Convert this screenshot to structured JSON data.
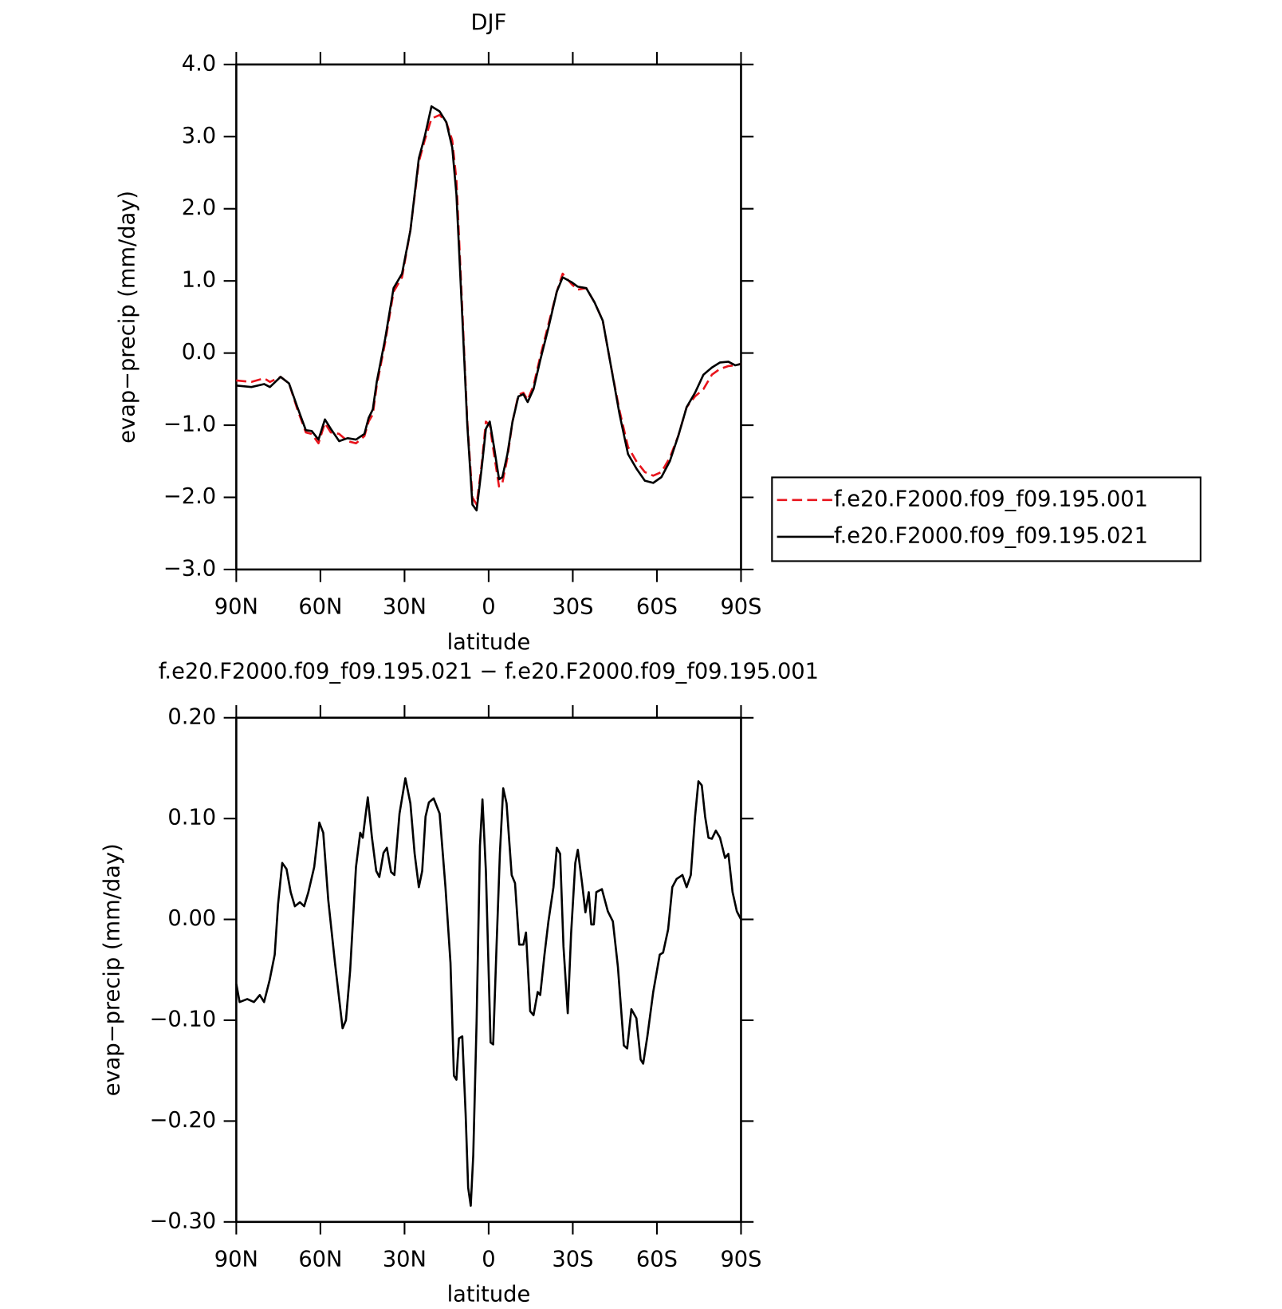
{
  "chart_data": [
    {
      "type": "line",
      "title": "DJF",
      "x_label": "latitude",
      "y_label": "evap−precip (mm/day)",
      "x": [
        90,
        84.6,
        80.1,
        78,
        74.2,
        71.2,
        68.2,
        65.2,
        63.1,
        60.7,
        58.4,
        56.3,
        53.3,
        50.3,
        47.3,
        44.3,
        42.8,
        41.3,
        39.9,
        36.9,
        33.9,
        30.9,
        27.9,
        24.9,
        22.8,
        20.4,
        17.5,
        15.1,
        13,
        11.5,
        9.4,
        7.6,
        5.8,
        4.3,
        2.5,
        1.0,
        -0.4,
        -1.9,
        -3.7,
        -4.9,
        -6.7,
        -8.5,
        -10.6,
        -12.4,
        -13.9,
        -16,
        -18.4,
        -21.3,
        -24.3,
        -26.4,
        -29.7,
        -31.8,
        -34.8,
        -37.8,
        -40.7,
        -43.7,
        -46.7,
        -49.7,
        -52.7,
        -55.7,
        -58.7,
        -61.6,
        -64.6,
        -67.6,
        -70.6,
        -73.6,
        -76.6,
        -79.6,
        -82.5,
        -85.5,
        -87.9,
        -90
      ],
      "series": [
        {
          "name": "f.e20.F2000.f09_f09.195.001",
          "color": "#e8141c",
          "linestyle": "dashed",
          "values": [
            -0.38,
            -0.4,
            -0.35,
            -0.4,
            -0.33,
            -0.42,
            -0.78,
            -1.1,
            -1.12,
            -1.25,
            -0.97,
            -1.1,
            -1.12,
            -1.22,
            -1.25,
            -1.15,
            -0.95,
            -0.85,
            -0.45,
            0.15,
            0.85,
            1.05,
            1.7,
            2.65,
            2.95,
            3.25,
            3.3,
            3.2,
            2.95,
            2.4,
            0.6,
            -0.95,
            -2.0,
            -2.1,
            -1.55,
            -0.95,
            -1.0,
            -1.4,
            -1.85,
            -1.8,
            -1.45,
            -0.95,
            -0.58,
            -0.55,
            -0.65,
            -0.45,
            -0.05,
            0.4,
            0.85,
            1.1,
            0.95,
            0.88,
            0.9,
            0.7,
            0.45,
            -0.2,
            -0.8,
            -1.3,
            -1.5,
            -1.65,
            -1.7,
            -1.65,
            -1.45,
            -1.15,
            -0.75,
            -0.6,
            -0.5,
            -0.3,
            -0.22,
            -0.18,
            -0.17,
            -0.15
          ]
        },
        {
          "name": "f.e20.F2000.f09_f09.195.021",
          "color": "#000000",
          "linestyle": "solid",
          "values": [
            -0.45,
            -0.47,
            -0.43,
            -0.47,
            -0.33,
            -0.42,
            -0.75,
            -1.07,
            -1.08,
            -1.2,
            -0.92,
            -1.05,
            -1.22,
            -1.18,
            -1.2,
            -1.12,
            -0.9,
            -0.78,
            -0.4,
            0.2,
            0.9,
            1.1,
            1.7,
            2.7,
            3.0,
            3.42,
            3.35,
            3.2,
            2.85,
            2.2,
            0.5,
            -1.0,
            -2.1,
            -2.18,
            -1.6,
            -1.05,
            -0.95,
            -1.3,
            -1.75,
            -1.72,
            -1.4,
            -0.95,
            -0.6,
            -0.57,
            -0.68,
            -0.5,
            -0.1,
            0.35,
            0.85,
            1.05,
            0.98,
            0.92,
            0.9,
            0.7,
            0.45,
            -0.2,
            -0.85,
            -1.4,
            -1.6,
            -1.77,
            -1.8,
            -1.72,
            -1.5,
            -1.15,
            -0.75,
            -0.55,
            -0.3,
            -0.2,
            -0.13,
            -0.12,
            -0.17,
            -0.15
          ]
        }
      ],
      "xlim": [
        90,
        -90
      ],
      "xticks": [
        {
          "value": 90,
          "label": "90N"
        },
        {
          "value": 60,
          "label": "60N"
        },
        {
          "value": 30,
          "label": "30N"
        },
        0,
        {
          "value": -30,
          "label": "30S"
        },
        {
          "value": -60,
          "label": "60S"
        },
        {
          "value": -90,
          "label": "90S"
        }
      ],
      "ylim": [
        -3,
        4
      ],
      "yticks": [
        {
          "value": -3,
          "label": "−3.0"
        },
        {
          "value": -2,
          "label": "−2.0"
        },
        {
          "value": -1,
          "label": "−1.0"
        },
        {
          "value": 0,
          "label": "0.0"
        },
        {
          "value": 1,
          "label": "1.0"
        },
        {
          "value": 2,
          "label": "2.0"
        },
        {
          "value": 3,
          "label": "3.0"
        },
        {
          "value": 4,
          "label": "4.0"
        }
      ],
      "grid": false,
      "legend": "right"
    },
    {
      "type": "line",
      "title": "f.e20.F2000.f09_f09.195.021 − f.e20.F2000.f09_f09.195.001",
      "x_label": "latitude",
      "y_label": "evap−precip (mm/day)",
      "color": "#000000",
      "x": [
        90,
        88.8,
        86.1,
        83.7,
        81.6,
        80.1,
        78.1,
        76.3,
        75.1,
        73.6,
        72.1,
        70.6,
        69.1,
        67.3,
        65.8,
        64.3,
        62.2,
        60.4,
        59.0,
        57.2,
        54.8,
        52.1,
        50.9,
        49.4,
        47.3,
        45.8,
        44.9,
        43.1,
        41.6,
        40.1,
        39.0,
        37.5,
        36.3,
        34.8,
        33.6,
        31.8,
        29.7,
        27.9,
        26.4,
        24.9,
        23.7,
        22.5,
        21.3,
        19.6,
        17.5,
        15.4,
        13.6,
        12.4,
        11.5,
        10.6,
        9.4,
        8.2,
        7.3,
        6.4,
        5.5,
        4.3,
        3.1,
        2.2,
        1.0,
        -0.7,
        -1.6,
        -2.8,
        -4.0,
        -5.2,
        -6.4,
        -8.2,
        -9.4,
        -10.9,
        -12.4,
        -13.3,
        -14.8,
        -16.0,
        -17.5,
        -18.4,
        -19.9,
        -21.3,
        -23.1,
        -24.3,
        -25.5,
        -26.7,
        -28.2,
        -29.4,
        -30.9,
        -31.8,
        -33.3,
        -34.5,
        -35.7,
        -36.6,
        -37.5,
        -38.4,
        -40.4,
        -42.5,
        -44.3,
        -46.1,
        -48.2,
        -49.4,
        -50.9,
        -52.7,
        -54.2,
        -55.1,
        -56.6,
        -58.7,
        -61.0,
        -62.2,
        -64.0,
        -65.5,
        -67.0,
        -69.1,
        -70.6,
        -72.1,
        -73.6,
        -74.8,
        -76.0,
        -77.2,
        -78.4,
        -79.6,
        -81.0,
        -82.5,
        -84.3,
        -85.5,
        -87.0,
        -88.5,
        -90
      ],
      "values": [
        -0.064,
        -0.082,
        -0.079,
        -0.082,
        -0.075,
        -0.082,
        -0.06,
        -0.035,
        0.015,
        0.056,
        0.05,
        0.027,
        0.013,
        0.017,
        0.013,
        0.027,
        0.052,
        0.096,
        0.086,
        0.019,
        -0.043,
        -0.108,
        -0.1,
        -0.051,
        0.052,
        0.086,
        0.081,
        0.121,
        0.081,
        0.048,
        0.042,
        0.066,
        0.071,
        0.047,
        0.044,
        0.105,
        0.14,
        0.115,
        0.065,
        0.032,
        0.048,
        0.102,
        0.116,
        0.12,
        0.105,
        0.032,
        -0.043,
        -0.155,
        -0.159,
        -0.118,
        -0.116,
        -0.193,
        -0.266,
        -0.284,
        -0.234,
        -0.101,
        0.073,
        0.119,
        0.048,
        -0.122,
        -0.124,
        -0.027,
        0.065,
        0.13,
        0.115,
        0.044,
        0.036,
        -0.025,
        -0.025,
        -0.013,
        -0.091,
        -0.095,
        -0.072,
        -0.075,
        -0.035,
        -0.002,
        0.032,
        0.071,
        0.065,
        -0.027,
        -0.093,
        -0.014,
        0.056,
        0.069,
        0.036,
        0.007,
        0.027,
        -0.005,
        -0.005,
        0.027,
        0.03,
        0.008,
        -0.002,
        -0.047,
        -0.125,
        -0.128,
        -0.089,
        -0.098,
        -0.139,
        -0.143,
        -0.116,
        -0.072,
        -0.035,
        -0.033,
        -0.01,
        0.032,
        0.04,
        0.044,
        0.032,
        0.044,
        0.102,
        0.137,
        0.133,
        0.102,
        0.081,
        0.08,
        0.088,
        0.081,
        0.061,
        0.065,
        0.027,
        0.008,
        0
      ],
      "xlim": [
        90,
        -90
      ],
      "xticks": [
        {
          "value": 90,
          "label": "90N"
        },
        {
          "value": 60,
          "label": "60N"
        },
        {
          "value": 30,
          "label": "30N"
        },
        0,
        {
          "value": -30,
          "label": "30S"
        },
        {
          "value": -60,
          "label": "60S"
        },
        {
          "value": -90,
          "label": "90S"
        }
      ],
      "ylim": [
        -0.3,
        0.2
      ],
      "yticks": [
        {
          "value": -0.3,
          "label": "−0.30"
        },
        {
          "value": -0.2,
          "label": "−0.20"
        },
        {
          "value": -0.1,
          "label": "−0.10"
        },
        {
          "value": 0,
          "label": "0.00"
        },
        {
          "value": 0.1,
          "label": "0.10"
        },
        {
          "value": 0.2,
          "label": "0.20"
        }
      ],
      "grid": false
    }
  ]
}
